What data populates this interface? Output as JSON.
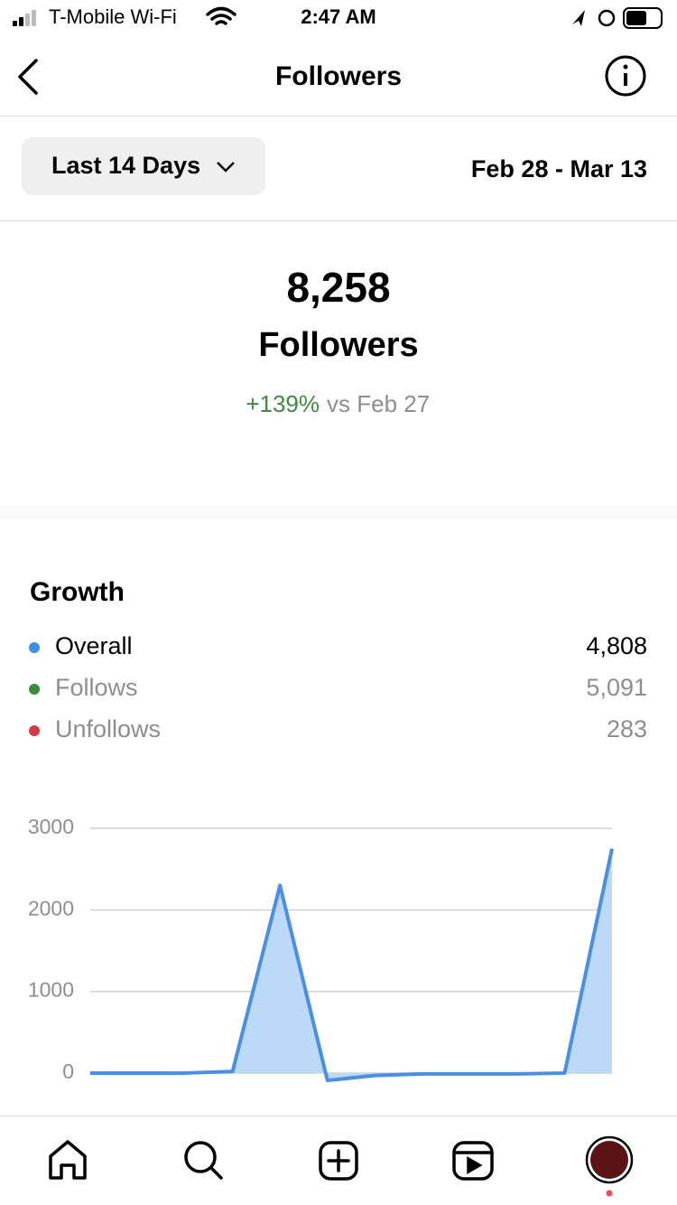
{
  "status_bar": {
    "carrier": "T-Mobile Wi-Fi",
    "time": "2:47 AM"
  },
  "header": {
    "title": "Followers"
  },
  "filter": {
    "range": "Last 14 Days",
    "dates": "Feb 28 - Mar 13"
  },
  "summary": {
    "count": "8,258",
    "label": "Followers",
    "change": "+139%",
    "comparison": "vs Feb 27"
  },
  "growth": {
    "title": "Growth",
    "legend": [
      {
        "name": "Overall",
        "value": "4,808",
        "color": "#3b8fe5"
      },
      {
        "name": "Follows",
        "value": "5,091",
        "color": "#3a8a3f"
      },
      {
        "name": "Unfollows",
        "value": "283",
        "color": "#d23a45"
      }
    ]
  },
  "chart_data": {
    "type": "area",
    "categories": [
      null,
      null,
      null,
      null,
      null,
      null,
      null,
      null,
      null,
      null,
      null,
      null
    ],
    "series": [
      {
        "color": "#4a8fe3",
        "fill": "#bcd9f8",
        "values": [
          0,
          0,
          0,
          20,
          2300,
          -90,
          -30,
          -10,
          -10,
          -10,
          0,
          2750
        ]
      }
    ],
    "ylim": [
      -200,
      3000
    ],
    "yticks": [
      0,
      1000,
      2000,
      3000
    ],
    "grid": true
  }
}
